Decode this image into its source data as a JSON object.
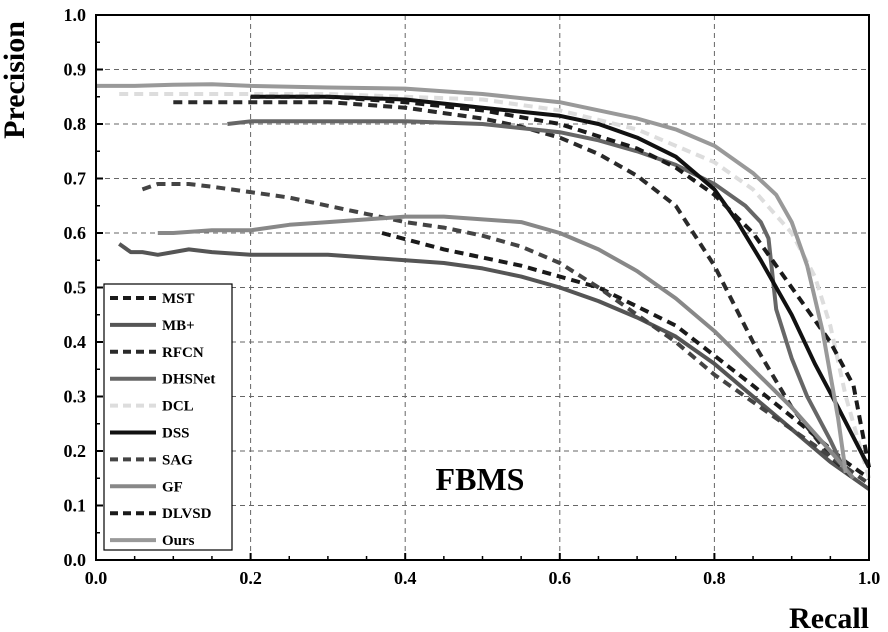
{
  "chart_data": {
    "type": "line",
    "title": "",
    "xlabel": "Recall",
    "ylabel": "Precision",
    "xlim": [
      0,
      1
    ],
    "ylim": [
      0,
      1
    ],
    "x_ticks": [
      "0.0",
      "0.2",
      "0.4",
      "0.6",
      "0.8",
      "1.0"
    ],
    "y_ticks": [
      "0.0",
      "0.1",
      "0.2",
      "0.3",
      "0.4",
      "0.5",
      "0.6",
      "0.7",
      "0.8",
      "0.9",
      "1.0"
    ],
    "grid": true,
    "legend_position": "bottom-left",
    "annotation": "FBMS",
    "series": [
      {
        "name": "MST",
        "color": "#1a1a1a",
        "dash": "dashed",
        "x": [
          0.37,
          0.45,
          0.55,
          0.65,
          0.75,
          0.85,
          0.92,
          0.97,
          1.0
        ],
        "y": [
          0.6,
          0.57,
          0.54,
          0.5,
          0.43,
          0.32,
          0.24,
          0.18,
          0.15
        ]
      },
      {
        "name": "MB+",
        "color": "#555555",
        "dash": "solid",
        "x": [
          0.03,
          0.045,
          0.06,
          0.08,
          0.1,
          0.12,
          0.15,
          0.2,
          0.25,
          0.3,
          0.35,
          0.4,
          0.45,
          0.5,
          0.55,
          0.6,
          0.65,
          0.7,
          0.75,
          0.8,
          0.85,
          0.9,
          0.95,
          1.0
        ],
        "y": [
          0.58,
          0.565,
          0.565,
          0.56,
          0.565,
          0.57,
          0.565,
          0.56,
          0.56,
          0.56,
          0.555,
          0.55,
          0.545,
          0.535,
          0.52,
          0.5,
          0.475,
          0.445,
          0.41,
          0.36,
          0.3,
          0.24,
          0.18,
          0.13
        ]
      },
      {
        "name": "RFCN",
        "color": "#2a2a2a",
        "dash": "dashed",
        "x": [
          0.1,
          0.15,
          0.2,
          0.25,
          0.3,
          0.35,
          0.4,
          0.45,
          0.5,
          0.55,
          0.6,
          0.65,
          0.7,
          0.75,
          0.8,
          0.85,
          0.9,
          0.95,
          0.98
        ],
        "y": [
          0.84,
          0.84,
          0.84,
          0.84,
          0.84,
          0.835,
          0.83,
          0.82,
          0.81,
          0.795,
          0.775,
          0.745,
          0.705,
          0.65,
          0.54,
          0.4,
          0.28,
          0.19,
          0.15
        ]
      },
      {
        "name": "DHSNet",
        "color": "#666666",
        "dash": "solid",
        "x": [
          0.17,
          0.2,
          0.3,
          0.4,
          0.5,
          0.6,
          0.65,
          0.7,
          0.75,
          0.8,
          0.84,
          0.86,
          0.87,
          0.88,
          0.9,
          0.92,
          0.95,
          0.97
        ],
        "y": [
          0.8,
          0.805,
          0.805,
          0.805,
          0.8,
          0.785,
          0.77,
          0.75,
          0.725,
          0.69,
          0.65,
          0.62,
          0.59,
          0.46,
          0.37,
          0.3,
          0.22,
          0.16
        ]
      },
      {
        "name": "DCL",
        "color": "#dddddd",
        "dash": "dashed",
        "x": [
          0.03,
          0.1,
          0.2,
          0.3,
          0.4,
          0.5,
          0.6,
          0.7,
          0.8,
          0.85,
          0.9,
          0.93,
          0.95,
          0.97,
          1.0
        ],
        "y": [
          0.855,
          0.855,
          0.855,
          0.855,
          0.85,
          0.845,
          0.825,
          0.79,
          0.73,
          0.68,
          0.6,
          0.52,
          0.43,
          0.3,
          0.15
        ]
      },
      {
        "name": "DSS",
        "color": "#111111",
        "dash": "solid",
        "x": [
          0.2,
          0.3,
          0.4,
          0.5,
          0.6,
          0.65,
          0.7,
          0.75,
          0.8,
          0.83,
          0.86,
          0.9,
          0.93,
          0.96,
          1.0
        ],
        "y": [
          0.85,
          0.85,
          0.845,
          0.83,
          0.815,
          0.8,
          0.775,
          0.74,
          0.68,
          0.62,
          0.55,
          0.45,
          0.36,
          0.28,
          0.17
        ]
      },
      {
        "name": "SAG",
        "color": "#444444",
        "dash": "dashed",
        "x": [
          0.06,
          0.08,
          0.1,
          0.12,
          0.15,
          0.2,
          0.25,
          0.3,
          0.35,
          0.4,
          0.45,
          0.5,
          0.55,
          0.6,
          0.65,
          0.7,
          0.75,
          0.8,
          0.85,
          0.9,
          0.95,
          1.0
        ],
        "y": [
          0.68,
          0.69,
          0.69,
          0.69,
          0.685,
          0.675,
          0.665,
          0.65,
          0.635,
          0.62,
          0.61,
          0.595,
          0.575,
          0.545,
          0.5,
          0.45,
          0.4,
          0.34,
          0.29,
          0.24,
          0.19,
          0.14
        ]
      },
      {
        "name": "GF",
        "color": "#888888",
        "dash": "solid",
        "x": [
          0.08,
          0.1,
          0.15,
          0.2,
          0.25,
          0.3,
          0.35,
          0.4,
          0.45,
          0.5,
          0.55,
          0.6,
          0.65,
          0.7,
          0.75,
          0.8,
          0.85,
          0.9,
          0.95,
          0.98
        ],
        "y": [
          0.6,
          0.6,
          0.605,
          0.605,
          0.615,
          0.62,
          0.625,
          0.63,
          0.63,
          0.625,
          0.62,
          0.6,
          0.57,
          0.53,
          0.48,
          0.42,
          0.35,
          0.28,
          0.2,
          0.15
        ]
      },
      {
        "name": "DLVSD",
        "color": "#1a1a1a",
        "dash": "dashed",
        "x": [
          0.2,
          0.3,
          0.4,
          0.5,
          0.6,
          0.7,
          0.75,
          0.8,
          0.85,
          0.9,
          0.95,
          0.98,
          1.0
        ],
        "y": [
          0.85,
          0.85,
          0.84,
          0.825,
          0.8,
          0.755,
          0.72,
          0.67,
          0.6,
          0.5,
          0.4,
          0.32,
          0.17
        ]
      },
      {
        "name": "Ours",
        "color": "#999999",
        "dash": "solid",
        "x": [
          0.0,
          0.05,
          0.1,
          0.15,
          0.2,
          0.3,
          0.4,
          0.5,
          0.6,
          0.7,
          0.75,
          0.8,
          0.85,
          0.88,
          0.9,
          0.92,
          0.94,
          0.96,
          0.97
        ],
        "y": [
          0.87,
          0.87,
          0.872,
          0.873,
          0.87,
          0.867,
          0.865,
          0.855,
          0.84,
          0.81,
          0.79,
          0.76,
          0.71,
          0.67,
          0.62,
          0.54,
          0.42,
          0.26,
          0.16
        ]
      }
    ]
  }
}
